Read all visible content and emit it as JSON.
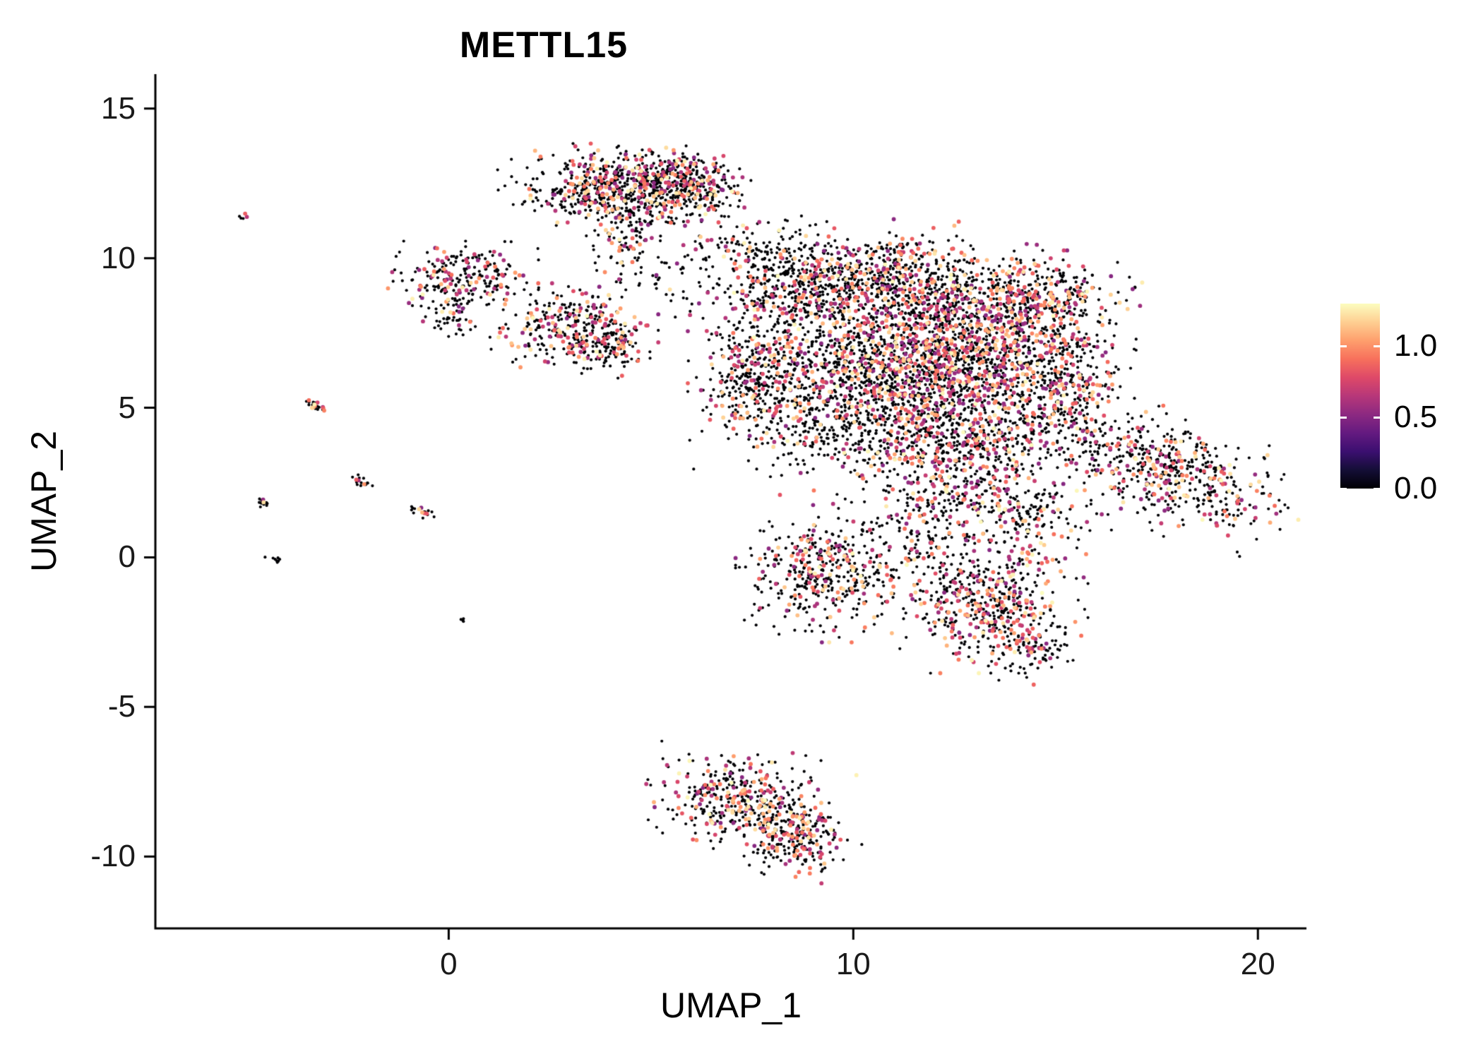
{
  "title": "METTL15",
  "chart_data": {
    "type": "scatter",
    "title": "METTL15",
    "xlabel": "UMAP_1",
    "ylabel": "UMAP_2",
    "xlim": [
      -7.25,
      21.2
    ],
    "ylim": [
      -12.4,
      16.15
    ],
    "x_ticks": [
      0,
      10,
      20
    ],
    "y_ticks": [
      -10,
      -5,
      0,
      5,
      10,
      15
    ],
    "grid": false,
    "background": "#ffffff",
    "axis_color": "#000000",
    "legend": {
      "position": "right",
      "ticks": [
        "1.0",
        "0.5",
        "0.0"
      ],
      "tick_values": [
        1.0,
        0.5,
        0.0
      ],
      "vmin": 0.0,
      "vmax": 1.3,
      "colormap": "magma",
      "color_stops": [
        {
          "t": 0.0,
          "color": "#000004"
        },
        {
          "t": 0.1,
          "color": "#140e36"
        },
        {
          "t": 0.2,
          "color": "#3b0f70"
        },
        {
          "t": 0.3,
          "color": "#641a80"
        },
        {
          "t": 0.4,
          "color": "#8c2981"
        },
        {
          "t": 0.5,
          "color": "#b73779"
        },
        {
          "t": 0.6,
          "color": "#de4968"
        },
        {
          "t": 0.7,
          "color": "#f7705c"
        },
        {
          "t": 0.8,
          "color": "#fe9f6d"
        },
        {
          "t": 0.9,
          "color": "#fecf92"
        },
        {
          "t": 1.0,
          "color": "#fcfdbf"
        }
      ]
    },
    "point_style": {
      "zero_radius_px": 2.1,
      "expr_radius_px": 2.9,
      "zero_color": "#000004"
    },
    "seed": 42,
    "clusters": [
      {
        "name": "top-main",
        "cx": 4.2,
        "cy": 12.4,
        "sx": 1.15,
        "sy": 0.55,
        "rot": 0,
        "n": 650,
        "expr": 0.3
      },
      {
        "name": "top-right-lobe",
        "cx": 5.9,
        "cy": 12.7,
        "sx": 0.55,
        "sy": 0.45,
        "rot": 0,
        "n": 180,
        "expr": 0.28
      },
      {
        "name": "top-tail",
        "cx": 4.4,
        "cy": 11.0,
        "sx": 0.45,
        "sy": 0.75,
        "rot": 0,
        "n": 130,
        "expr": 0.22
      },
      {
        "name": "top-east-spur",
        "cx": 6.4,
        "cy": 11.9,
        "sx": 0.45,
        "sy": 0.55,
        "rot": 0,
        "n": 70,
        "expr": 0.2
      },
      {
        "name": "bridge-top",
        "cx": 7.1,
        "cy": 10.4,
        "sx": 0.8,
        "sy": 0.5,
        "rot": 0,
        "n": 55,
        "expr": 0.18
      },
      {
        "name": "nw-cluster",
        "cx": 0.45,
        "cy": 9.4,
        "sx": 0.75,
        "sy": 0.45,
        "rot": 0,
        "n": 230,
        "expr": 0.3
      },
      {
        "name": "nw-tail",
        "cx": 0.1,
        "cy": 8.2,
        "sx": 0.3,
        "sy": 0.35,
        "rot": 0,
        "n": 60,
        "expr": 0.25
      },
      {
        "name": "west-mid-cluster",
        "cx": 3.1,
        "cy": 7.6,
        "sx": 0.8,
        "sy": 0.6,
        "rot": 0,
        "n": 320,
        "expr": 0.33
      },
      {
        "name": "west-mid-spur",
        "cx": 4.1,
        "cy": 6.9,
        "sx": 0.45,
        "sy": 0.35,
        "rot": 0,
        "n": 80,
        "expr": 0.28
      },
      {
        "name": "bridge-mid",
        "cx": 5.3,
        "cy": 9.2,
        "sx": 0.7,
        "sy": 0.6,
        "rot": 0,
        "n": 45,
        "expr": 0.15
      },
      {
        "name": "main-nw",
        "cx": 8.4,
        "cy": 9.2,
        "sx": 1.0,
        "sy": 0.85,
        "rot": 0,
        "n": 420,
        "expr": 0.3
      },
      {
        "name": "main-n",
        "cx": 10.6,
        "cy": 9.4,
        "sx": 1.25,
        "sy": 0.7,
        "rot": 0,
        "n": 450,
        "expr": 0.3
      },
      {
        "name": "main-ne",
        "cx": 12.6,
        "cy": 8.4,
        "sx": 1.2,
        "sy": 0.85,
        "rot": 0,
        "n": 520,
        "expr": 0.35
      },
      {
        "name": "ne-lobe",
        "cx": 14.8,
        "cy": 8.7,
        "sx": 0.9,
        "sy": 0.6,
        "rot": 0,
        "n": 300,
        "expr": 0.35
      },
      {
        "name": "main-w-arm",
        "cx": 7.6,
        "cy": 6.2,
        "sx": 0.65,
        "sy": 1.25,
        "rot": 0,
        "n": 350,
        "expr": 0.28
      },
      {
        "name": "main-center-w",
        "cx": 9.6,
        "cy": 6.4,
        "sx": 1.2,
        "sy": 1.15,
        "rot": 0,
        "n": 600,
        "expr": 0.25
      },
      {
        "name": "main-center",
        "cx": 11.8,
        "cy": 6.3,
        "sx": 1.25,
        "sy": 1.15,
        "rot": 0,
        "n": 800,
        "expr": 0.36
      },
      {
        "name": "main-center-e",
        "cx": 13.8,
        "cy": 6.4,
        "sx": 1.0,
        "sy": 1.0,
        "rot": 0,
        "n": 450,
        "expr": 0.36
      },
      {
        "name": "main-e-edge",
        "cx": 15.3,
        "cy": 5.9,
        "sx": 0.65,
        "sy": 1.1,
        "rot": 0,
        "n": 260,
        "expr": 0.3
      },
      {
        "name": "main-s-w",
        "cx": 10.4,
        "cy": 4.3,
        "sx": 1.4,
        "sy": 0.85,
        "rot": 0,
        "n": 430,
        "expr": 0.25
      },
      {
        "name": "main-s-e",
        "cx": 13.0,
        "cy": 3.9,
        "sx": 1.0,
        "sy": 0.8,
        "rot": 0,
        "n": 350,
        "expr": 0.3
      },
      {
        "name": "main-s-tail",
        "cx": 12.4,
        "cy": 2.1,
        "sx": 1.0,
        "sy": 0.8,
        "rot": 0,
        "n": 220,
        "expr": 0.25
      },
      {
        "name": "main-se-spur",
        "cx": 14.3,
        "cy": 1.6,
        "sx": 0.8,
        "sy": 0.8,
        "rot": 0,
        "n": 170,
        "expr": 0.28
      },
      {
        "name": "bridge-low",
        "cx": 11.4,
        "cy": 0.4,
        "sx": 0.9,
        "sy": 0.7,
        "rot": 0,
        "n": 110,
        "expr": 0.2
      },
      {
        "name": "south-w-cluster",
        "cx": 9.3,
        "cy": -0.5,
        "sx": 0.85,
        "sy": 0.9,
        "rot": 0,
        "n": 400,
        "expr": 0.3
      },
      {
        "name": "south-e-cluster",
        "cx": 13.2,
        "cy": -1.4,
        "sx": 1.0,
        "sy": 0.95,
        "rot": 0,
        "n": 480,
        "expr": 0.36
      },
      {
        "name": "south-e-tail",
        "cx": 14.3,
        "cy": -2.8,
        "sx": 0.5,
        "sy": 0.6,
        "rot": -30,
        "n": 130,
        "expr": 0.3
      },
      {
        "name": "east-wing",
        "cx": 17.5,
        "cy": 3.0,
        "sx": 1.6,
        "sy": 0.75,
        "rot": -28,
        "n": 600,
        "expr": 0.3
      },
      {
        "name": "bottom-cluster",
        "cx": 7.3,
        "cy": -8.1,
        "sx": 0.95,
        "sy": 0.7,
        "rot": -15,
        "n": 420,
        "expr": 0.35
      },
      {
        "name": "bottom-tip",
        "cx": 8.6,
        "cy": -9.4,
        "sx": 0.55,
        "sy": 0.55,
        "rot": -40,
        "n": 220,
        "expr": 0.3
      },
      {
        "name": "streak-a",
        "cx": -5.1,
        "cy": 11.4,
        "sx": 0.07,
        "sy": 0.05,
        "rot": 0,
        "n": 5,
        "expr": 0.5
      },
      {
        "name": "streak-b",
        "cx": -3.35,
        "cy": 5.1,
        "sx": 0.2,
        "sy": 0.07,
        "rot": -35,
        "n": 22,
        "expr": 0.3
      },
      {
        "name": "streak-c",
        "cx": -2.15,
        "cy": 2.5,
        "sx": 0.16,
        "sy": 0.07,
        "rot": -35,
        "n": 18,
        "expr": 0.4
      },
      {
        "name": "streak-d",
        "cx": -4.55,
        "cy": 1.8,
        "sx": 0.13,
        "sy": 0.06,
        "rot": -35,
        "n": 14,
        "expr": 0.2
      },
      {
        "name": "streak-e",
        "cx": -0.6,
        "cy": 1.5,
        "sx": 0.2,
        "sy": 0.07,
        "rot": -30,
        "n": 18,
        "expr": 0.3
      },
      {
        "name": "streak-f",
        "cx": -4.3,
        "cy": -0.1,
        "sx": 0.1,
        "sy": 0.05,
        "rot": -30,
        "n": 8,
        "expr": 0.1
      },
      {
        "name": "dot-g",
        "cx": 0.35,
        "cy": -2.1,
        "sx": 0.05,
        "sy": 0.04,
        "rot": 0,
        "n": 4,
        "expr": 0.0
      }
    ]
  }
}
